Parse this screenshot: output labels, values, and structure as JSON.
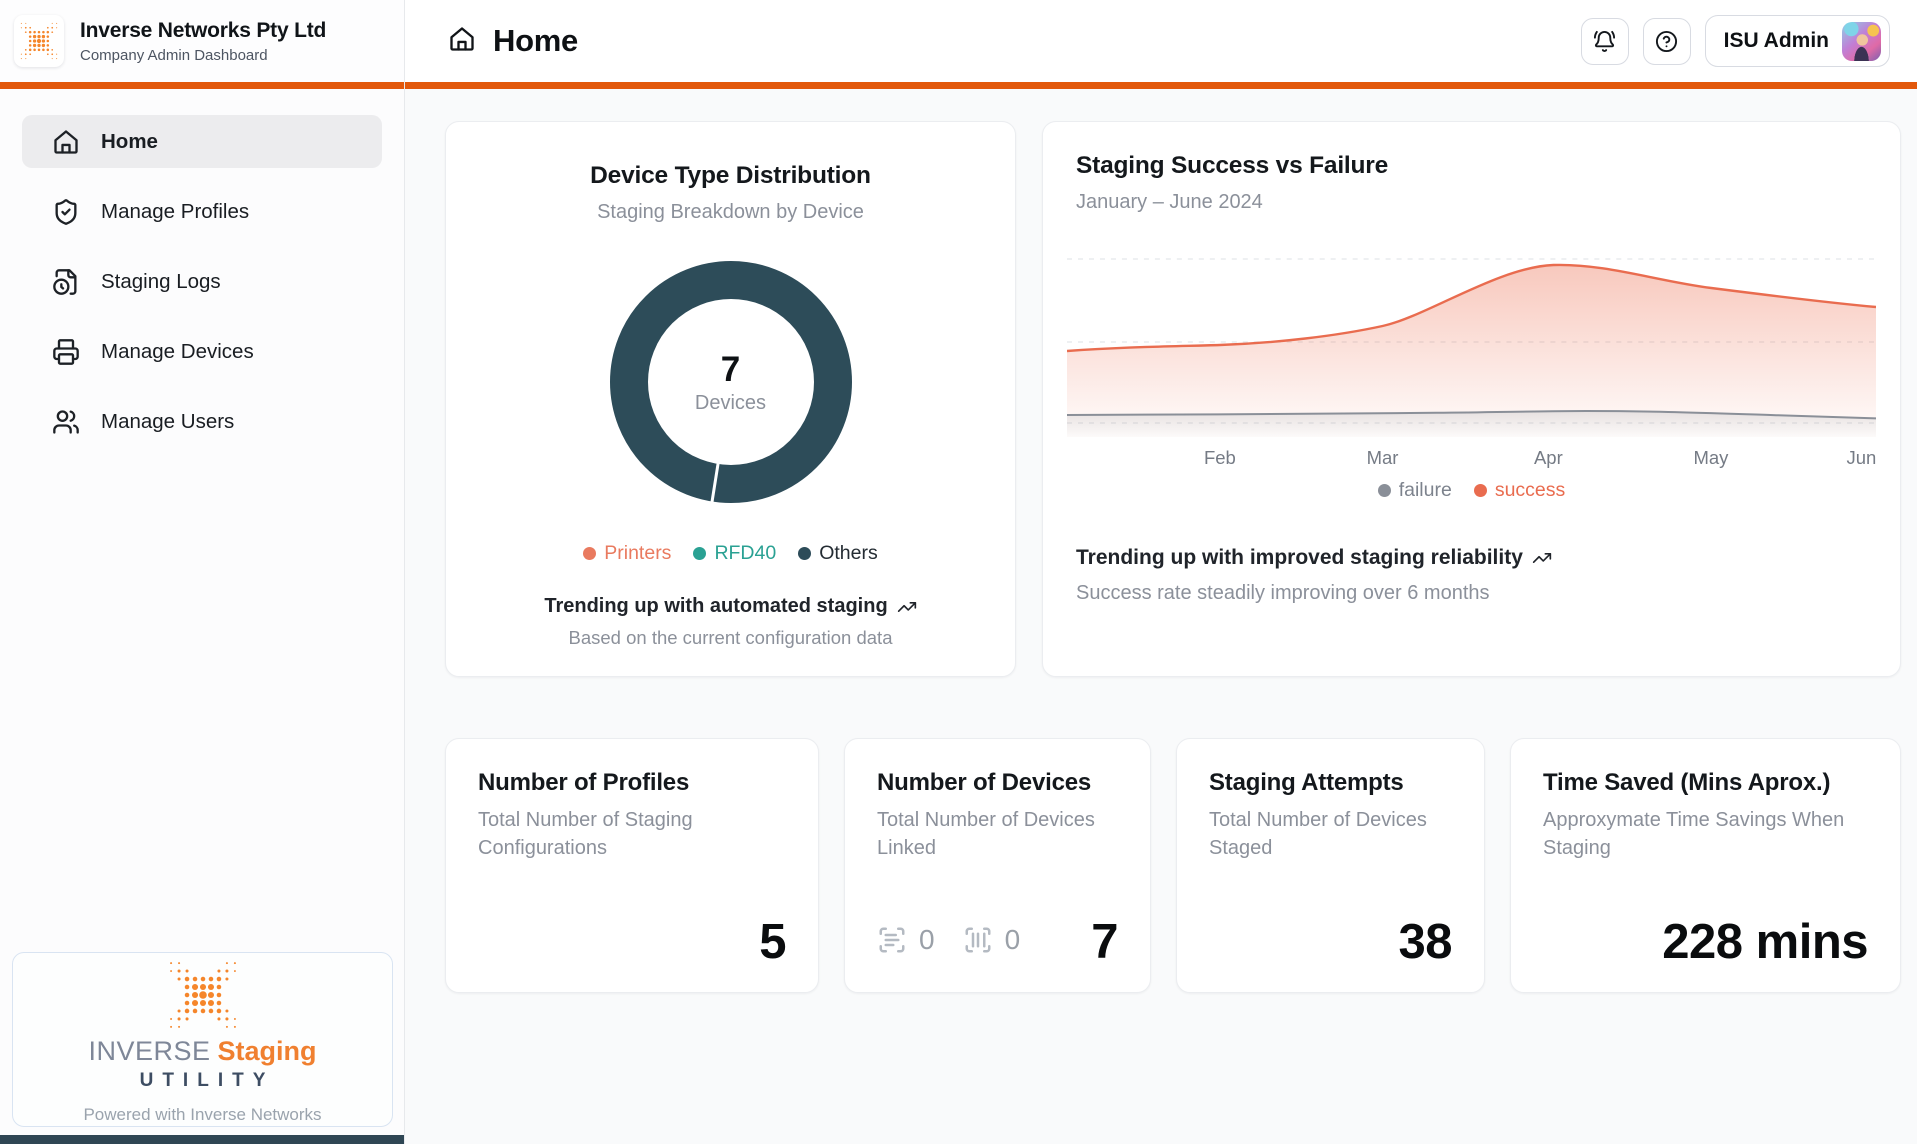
{
  "brand": {
    "company": "Inverse Networks Pty Ltd",
    "subtitle": "Company Admin Dashboard"
  },
  "header": {
    "title": "Home",
    "user_label": "ISU Admin"
  },
  "sidebar": {
    "items": [
      {
        "label": "Home",
        "icon": "home-icon",
        "active": true
      },
      {
        "label": "Manage Profiles",
        "icon": "shield-check-icon",
        "active": false
      },
      {
        "label": "Staging Logs",
        "icon": "file-clock-icon",
        "active": false
      },
      {
        "label": "Manage Devices",
        "icon": "printer-icon",
        "active": false
      },
      {
        "label": "Manage Users",
        "icon": "users-icon",
        "active": false
      }
    ],
    "footer": {
      "wordmark_primary": "INVERSE",
      "wordmark_accent": "Staging",
      "wordmark_secondary": "UTILITY",
      "powered_by": "Powered with Inverse Networks"
    }
  },
  "colors": {
    "accent_orange": "#e2580b",
    "donut_ring": "#2d4c59",
    "success": "#e96c4f",
    "failure": "#8a8f98",
    "teal": "#2aa193",
    "salmon": "#e97a5f"
  },
  "donut_card": {
    "title": "Device Type Distribution",
    "subtitle": "Staging Breakdown by Device",
    "trend_text": "Trending up with automated staging",
    "caption": "Based on the current configuration data"
  },
  "staging_card": {
    "title": "Staging Success vs Failure",
    "subtitle": "January – June 2024",
    "trend_text": "Trending up with improved staging reliability",
    "caption": "Success rate steadily improving over 6 months"
  },
  "chart_data": [
    {
      "type": "pie",
      "variant": "donut",
      "title": "Device Type Distribution",
      "center_value": "7",
      "center_label": "Devices",
      "slices": [
        {
          "label": "Printers",
          "value": 0,
          "color": "#e97a5f"
        },
        {
          "label": "RFD40",
          "value": 0,
          "color": "#2aa193"
        },
        {
          "label": "Others",
          "value": 7,
          "color": "#2d4c59"
        }
      ]
    },
    {
      "type": "area",
      "title": "Staging Success vs Failure",
      "x": [
        "Jan",
        "Feb",
        "Mar",
        "Apr",
        "May",
        "Jun"
      ],
      "tick_labels": [
        "Feb",
        "Mar",
        "Apr",
        "May",
        "Jun"
      ],
      "series": [
        {
          "name": "failure",
          "color": "#8a8f98",
          "values": [
            1,
            1,
            1,
            2,
            1.5,
            1
          ]
        },
        {
          "name": "success",
          "color": "#e96c4f",
          "values": [
            9,
            10,
            12,
            19,
            16,
            14
          ]
        }
      ],
      "ylim": [
        0,
        22
      ],
      "grid": "dashed-horizontal",
      "legend_position": "bottom"
    }
  ],
  "stats": [
    {
      "title": "Number of Profiles",
      "subtitle": "Total Number of Staging Configurations",
      "value": "5"
    },
    {
      "title": "Number of Devices",
      "subtitle": "Total Number of Devices Linked",
      "value": "7",
      "counters": [
        {
          "icon": "scan-text-icon",
          "value": "0"
        },
        {
          "icon": "scan-barcode-icon",
          "value": "0"
        }
      ]
    },
    {
      "title": "Staging Attempts",
      "subtitle": "Total Number of Devices Staged",
      "value": "38"
    },
    {
      "title": "Time Saved (Mins Aprox.)",
      "subtitle": "Approxymate Time Savings When Staging",
      "value": "228 mins"
    }
  ]
}
